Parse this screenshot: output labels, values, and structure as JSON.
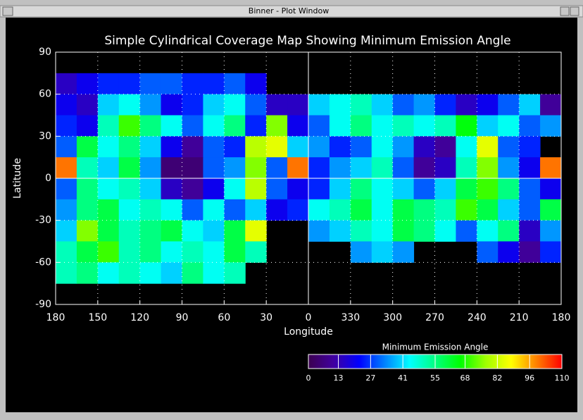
{
  "window": {
    "title": "Binner - Plot Window"
  },
  "chart_data": {
    "type": "heatmap",
    "title": "Simple Cylindrical Coverage Map Showing Minimum Emission Angle",
    "xlabel": "Longitude",
    "ylabel": "Latitude",
    "x": [
      172.5,
      157.5,
      142.5,
      127.5,
      112.5,
      97.5,
      82.5,
      67.5,
      52.5,
      37.5,
      22.5,
      7.5,
      -7.5,
      -22.5,
      -37.5,
      -52.5,
      -67.5,
      -82.5,
      -97.5,
      -112.5,
      -127.5,
      -142.5,
      -157.5,
      -172.5
    ],
    "y": [
      82.5,
      67.5,
      52.5,
      37.5,
      22.5,
      7.5,
      -7.5,
      -22.5,
      -37.5,
      -52.5,
      -67.5,
      -82.5
    ],
    "values": [
      [
        null,
        null,
        null,
        null,
        null,
        null,
        null,
        null,
        null,
        null,
        null,
        null,
        null,
        null,
        null,
        null,
        null,
        null,
        null,
        null,
        null,
        null,
        null,
        null
      ],
      [
        15,
        20,
        25,
        25,
        30,
        30,
        25,
        25,
        30,
        20,
        null,
        null,
        null,
        null,
        null,
        null,
        null,
        null,
        null,
        null,
        null,
        null,
        null,
        null
      ],
      [
        20,
        15,
        40,
        45,
        35,
        20,
        25,
        40,
        45,
        30,
        15,
        15,
        40,
        45,
        50,
        40,
        30,
        35,
        25,
        15,
        20,
        30,
        40,
        10
      ],
      [
        25,
        20,
        50,
        70,
        55,
        45,
        30,
        45,
        55,
        25,
        75,
        20,
        30,
        45,
        55,
        45,
        50,
        45,
        50,
        65,
        40,
        45,
        30,
        35
      ],
      [
        30,
        60,
        45,
        55,
        40,
        20,
        10,
        30,
        25,
        80,
        85,
        40,
        35,
        25,
        30,
        45,
        35,
        15,
        10,
        45,
        85,
        30,
        25,
        null
      ],
      [
        100,
        50,
        40,
        60,
        35,
        5,
        5,
        30,
        35,
        75,
        30,
        100,
        25,
        35,
        40,
        50,
        30,
        10,
        15,
        50,
        75,
        35,
        20,
        100
      ],
      [
        30,
        55,
        45,
        50,
        40,
        15,
        10,
        20,
        45,
        80,
        30,
        20,
        25,
        40,
        55,
        45,
        40,
        30,
        40,
        60,
        70,
        55,
        30,
        20
      ],
      [
        35,
        55,
        60,
        45,
        50,
        45,
        30,
        45,
        30,
        40,
        20,
        25,
        45,
        50,
        60,
        45,
        60,
        55,
        50,
        70,
        60,
        40,
        30,
        60
      ],
      [
        40,
        75,
        60,
        50,
        55,
        60,
        45,
        40,
        60,
        85,
        null,
        null,
        35,
        40,
        50,
        45,
        60,
        55,
        45,
        30,
        45,
        55,
        15,
        35
      ],
      [
        50,
        60,
        70,
        50,
        55,
        45,
        50,
        45,
        60,
        50,
        null,
        null,
        null,
        null,
        35,
        40,
        35,
        null,
        null,
        null,
        30,
        20,
        10,
        25
      ],
      [
        50,
        55,
        45,
        50,
        45,
        40,
        55,
        45,
        50,
        null,
        null,
        null,
        null,
        null,
        null,
        null,
        null,
        null,
        null,
        null,
        null,
        null,
        null,
        null
      ],
      [
        null,
        null,
        null,
        null,
        null,
        null,
        null,
        null,
        null,
        null,
        null,
        null,
        null,
        null,
        null,
        null,
        null,
        null,
        null,
        null,
        null,
        null,
        null,
        null
      ]
    ],
    "xlim": [
      180,
      -180
    ],
    "ylim": [
      -90,
      90
    ],
    "xticks": [
      180,
      150,
      120,
      90,
      60,
      30,
      0,
      {
        "value": -30,
        "label": "330"
      },
      {
        "value": -60,
        "label": "300"
      },
      {
        "value": -90,
        "label": "270"
      },
      {
        "value": -120,
        "label": "240"
      },
      {
        "value": -150,
        "label": "210"
      },
      {
        "value": -180,
        "label": "180"
      }
    ],
    "yticks": [
      -90,
      -60,
      -30,
      0,
      30,
      60,
      90
    ],
    "grid": true,
    "colormap": [
      "#3c0050",
      "#4000a0",
      "#0000ff",
      "#0080ff",
      "#00ffff",
      "#00ff80",
      "#00ff00",
      "#a0ff00",
      "#ffff00",
      "#ff8000",
      "#ff0000"
    ],
    "colorbar": {
      "title": "Minimum Emission Angle",
      "lim": [
        0,
        110
      ],
      "ticks": [
        0,
        13,
        27,
        41,
        55,
        68,
        82,
        96,
        110
      ]
    }
  }
}
